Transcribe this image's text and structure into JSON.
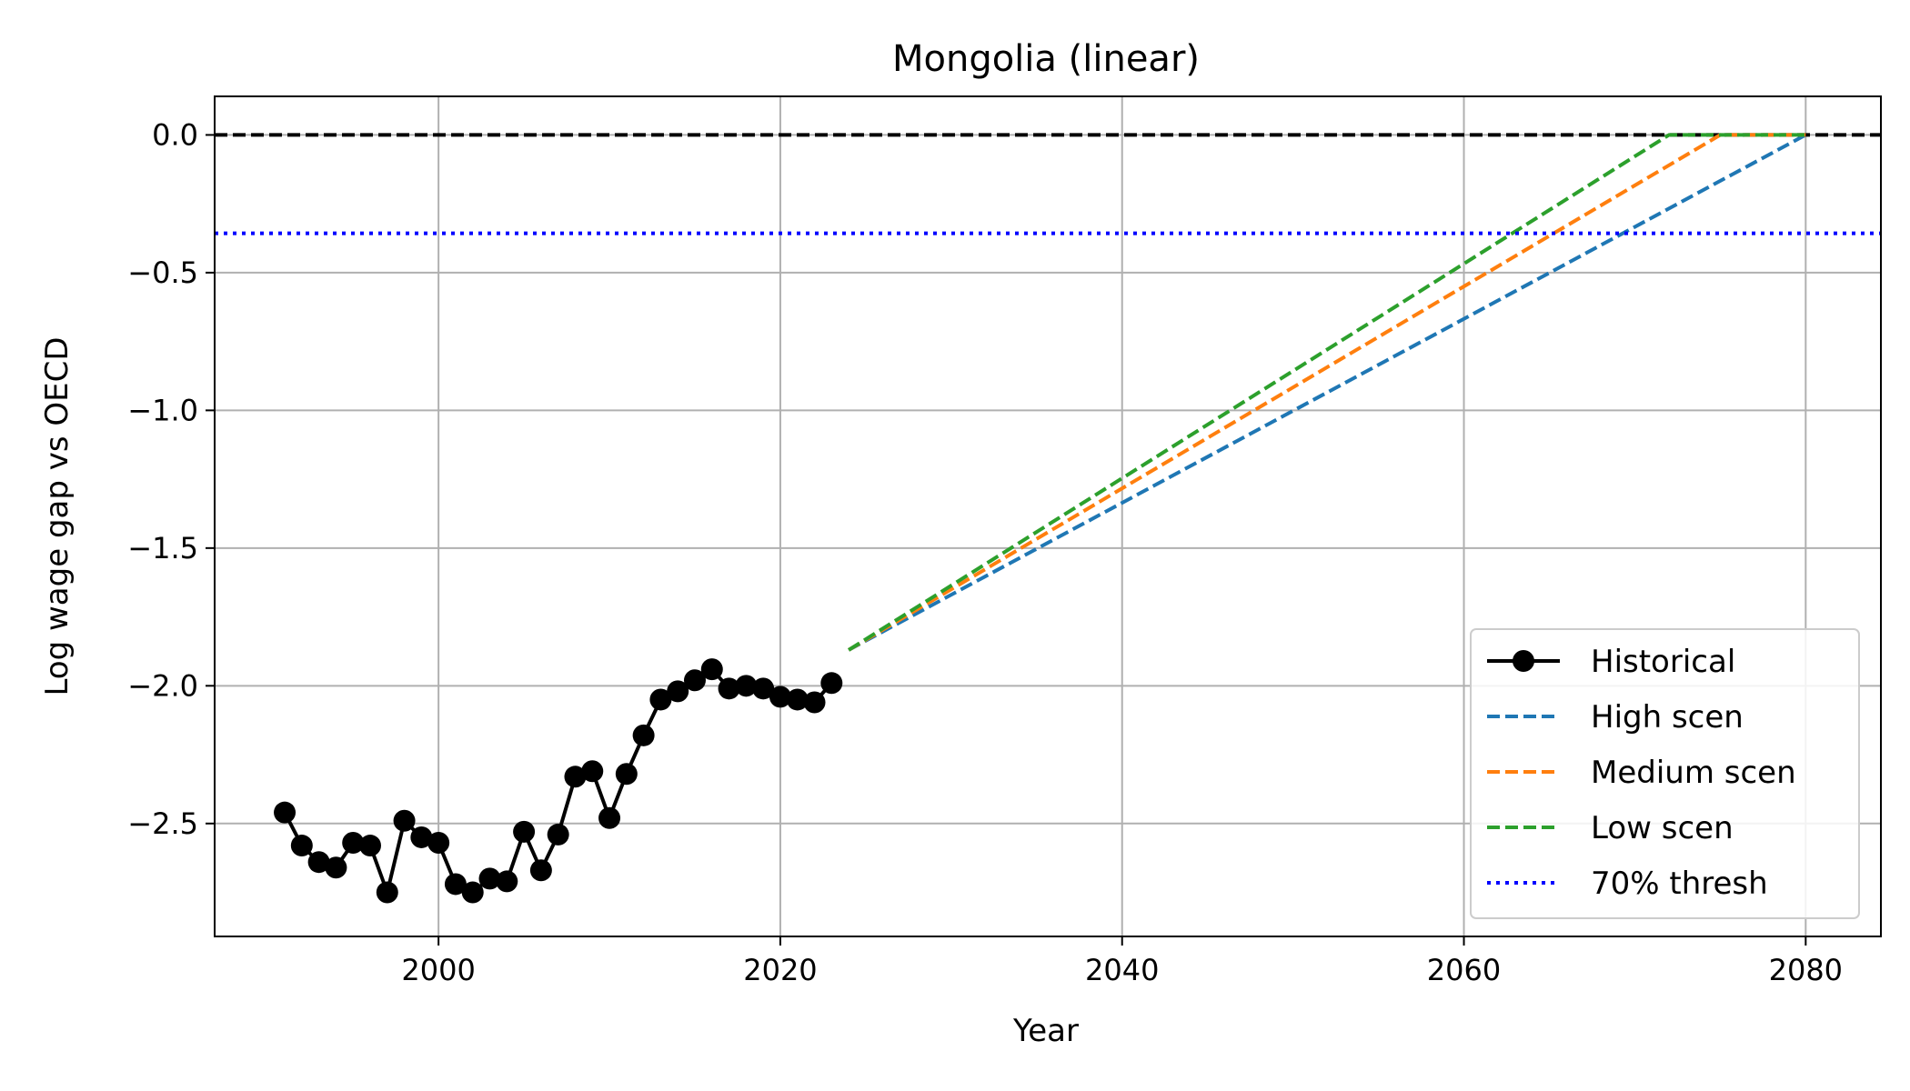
{
  "chart_data": {
    "type": "line",
    "title": "Mongolia (linear)",
    "xlabel": "Year",
    "ylabel": "Log wage gap vs OECD",
    "xlim": [
      1986.9,
      2084.4
    ],
    "ylim": [
      -2.91,
      0.14
    ],
    "xticks": [
      2000,
      2020,
      2040,
      2060,
      2080
    ],
    "yticks": [
      0.0,
      -0.5,
      -1.0,
      -1.5,
      -2.0,
      -2.5
    ],
    "ytick_labels": [
      "0.0",
      "−0.5",
      "−1.0",
      "−1.5",
      "−2.0",
      "−2.5"
    ],
    "grid": true,
    "legend_position": "lower right",
    "series": [
      {
        "name": "Historical",
        "style": "solid-marker",
        "color": "#000000",
        "x": [
          1991,
          1992,
          1993,
          1994,
          1995,
          1996,
          1997,
          1998,
          1999,
          2000,
          2001,
          2002,
          2003,
          2004,
          2005,
          2006,
          2007,
          2008,
          2009,
          2010,
          2011,
          2012,
          2013,
          2014,
          2015,
          2016,
          2017,
          2018,
          2019,
          2020,
          2021,
          2022,
          2023
        ],
        "y": [
          -2.46,
          -2.58,
          -2.64,
          -2.66,
          -2.57,
          -2.58,
          -2.75,
          -2.49,
          -2.55,
          -2.57,
          -2.72,
          -2.75,
          -2.7,
          -2.71,
          -2.53,
          -2.67,
          -2.54,
          -2.33,
          -2.31,
          -2.48,
          -2.32,
          -2.18,
          -2.05,
          -2.02,
          -1.98,
          -1.94,
          -2.01,
          -2.0,
          -2.01,
          -2.04,
          -2.05,
          -2.06,
          -1.99
        ]
      },
      {
        "name": "High scen",
        "style": "dashed",
        "color": "#1f77b4",
        "x": [
          2024,
          2080
        ],
        "y": [
          -1.87,
          0.0
        ]
      },
      {
        "name": "Medium scen",
        "style": "dashed",
        "color": "#ff7f0e",
        "x": [
          2024,
          2075,
          2080
        ],
        "y": [
          -1.87,
          0.0,
          0.0
        ]
      },
      {
        "name": "Low scen",
        "style": "dashed",
        "color": "#2ca02c",
        "x": [
          2024,
          2072,
          2080
        ],
        "y": [
          -1.87,
          0.0,
          0.0
        ]
      },
      {
        "name": "70% thresh",
        "style": "dotted",
        "color": "#0000ff",
        "hline": -0.357
      }
    ],
    "reference_line": {
      "y": 0.0,
      "color": "#000000",
      "style": "dashed"
    }
  }
}
